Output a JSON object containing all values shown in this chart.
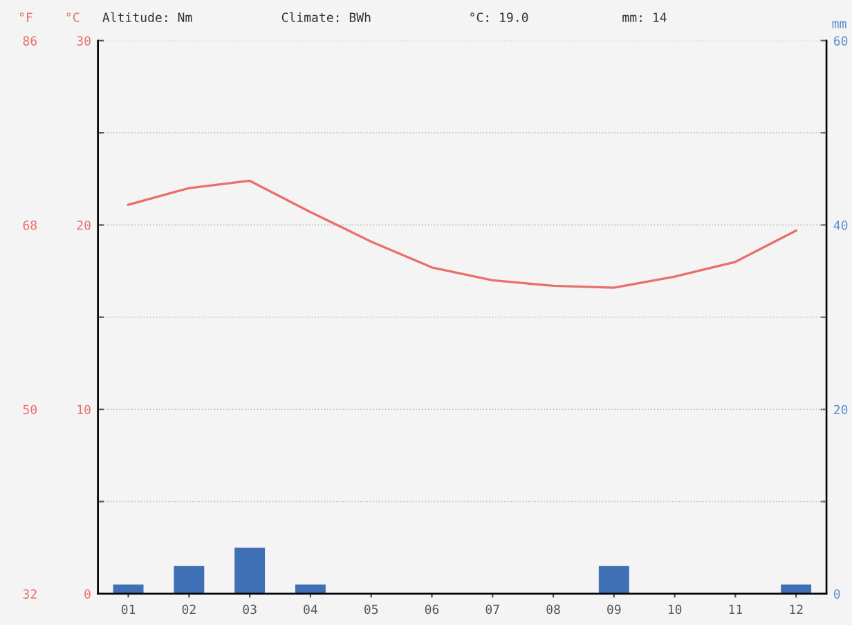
{
  "chart_data": {
    "type": "bar",
    "categories": [
      "01",
      "02",
      "03",
      "04",
      "05",
      "06",
      "07",
      "08",
      "09",
      "10",
      "11",
      "12"
    ],
    "series": [
      {
        "name": null,
        "axis": "y2",
        "color": "#3f6fb5",
        "values": [
          1,
          3,
          5,
          1,
          0,
          0,
          0,
          0,
          3,
          0,
          0,
          1
        ]
      },
      {
        "name": null,
        "type": "line",
        "axis": "y",
        "color": "#e8706c",
        "values": [
          21.1,
          22.0,
          22.4,
          20.7,
          19.1,
          17.7,
          17.0,
          16.7,
          16.6,
          17.2,
          18.0,
          19.7
        ]
      }
    ],
    "ylabel": "°C",
    "y2label": "mm",
    "y3label": "°F",
    "ylim": [
      0,
      30
    ],
    "yticks": [
      0,
      {
        "value": 5,
        "label": null
      },
      10,
      {
        "value": 15,
        "label": null
      },
      20,
      {
        "value": 25,
        "label": null
      },
      30
    ],
    "y2lim": [
      0,
      60
    ],
    "y2ticks": [
      0,
      {
        "value": 10,
        "label": null
      },
      20,
      {
        "value": 30,
        "label": null
      },
      40,
      {
        "value": 50,
        "label": null
      },
      60
    ],
    "y3lim": [
      32,
      86
    ],
    "y3ticks": [
      32,
      50,
      68,
      86
    ],
    "grid": "y",
    "annotations": [
      "Altitude: Nm",
      "Climate: BWh",
      "°C: 19.0",
      "mm: 14"
    ]
  }
}
